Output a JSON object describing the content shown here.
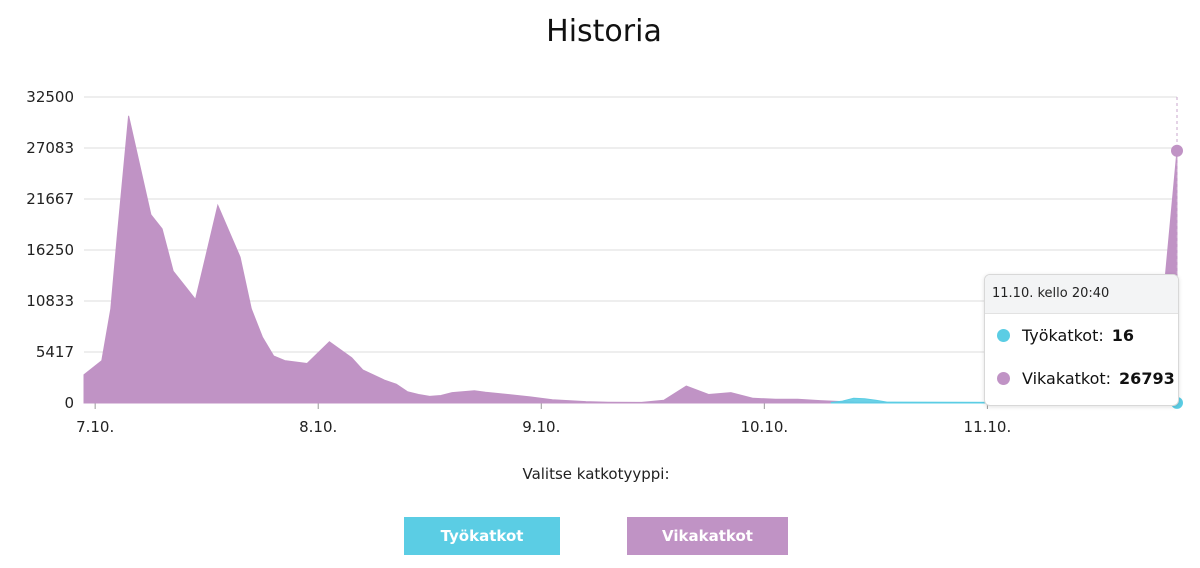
{
  "title": "Historia",
  "colors": {
    "tyokatkot": "#5bcde4",
    "vikakatkot": "#c093c5",
    "grid": "#dcdcdc",
    "axis": "#cfcfcf"
  },
  "chart_data": {
    "type": "area",
    "title": "Historia",
    "xlabel": "",
    "ylabel": "",
    "ylim": [
      0,
      32500
    ],
    "y_ticks": [
      "32500",
      "27083",
      "21667",
      "16250",
      "10833",
      "5417",
      "0"
    ],
    "x_ticks": [
      "7.10.",
      "8.10.",
      "9.10.",
      "10.10.",
      "11.10."
    ],
    "series": [
      {
        "name": "Vikakatkot",
        "color": "#c093c5",
        "x": [
          0,
          0.08,
          0.12,
          0.15,
          0.2,
          0.3,
          0.35,
          0.4,
          0.45,
          0.5,
          0.55,
          0.6,
          0.7,
          0.75,
          0.8,
          0.85,
          0.9,
          1.0,
          1.1,
          1.2,
          1.25,
          1.35,
          1.4,
          1.45,
          1.5,
          1.55,
          1.6,
          1.65,
          1.75,
          1.8,
          1.9,
          2.0,
          2.1,
          2.25,
          2.35,
          2.5,
          2.6,
          2.7,
          2.8,
          2.9,
          3.0,
          3.1,
          3.2,
          3.3,
          3.35,
          3.4,
          3.45,
          3.5,
          3.6,
          3.7,
          3.75,
          3.8,
          3.9,
          4.0,
          4.3,
          4.5,
          4.75,
          4.8,
          4.85,
          4.9
        ],
        "values": [
          3000,
          4500,
          10000,
          18000,
          30500,
          20000,
          18500,
          14000,
          12500,
          11000,
          16000,
          21000,
          15500,
          10000,
          7000,
          5000,
          4500,
          4200,
          6500,
          4800,
          3500,
          2400,
          2000,
          1200,
          900,
          700,
          800,
          1100,
          1300,
          1150,
          900,
          650,
          350,
          150,
          80,
          60,
          300,
          1800,
          900,
          1100,
          500,
          400,
          400,
          250,
          200,
          150,
          100,
          80,
          50,
          40,
          35,
          30,
          30,
          30,
          30,
          40,
          60,
          600,
          14000,
          26793
        ]
      },
      {
        "name": "Työkatkot",
        "color": "#5bcde4",
        "x": [
          3.35,
          3.4,
          3.45,
          3.5,
          3.55,
          3.6,
          4.9
        ],
        "values": [
          50,
          200,
          500,
          450,
          300,
          100,
          16
        ]
      }
    ],
    "tooltip": {
      "time": "11.10. kello 20:40",
      "rows": [
        {
          "label": "Työkatkot:",
          "value": "16"
        },
        {
          "label": "Vikakatkot:",
          "value": "26793"
        }
      ]
    }
  },
  "picker": {
    "label": "Valitse katkotyyppi:",
    "buttons": {
      "tyokatkot": "Työkatkot",
      "vikakatkot": "Vikakatkot"
    }
  }
}
